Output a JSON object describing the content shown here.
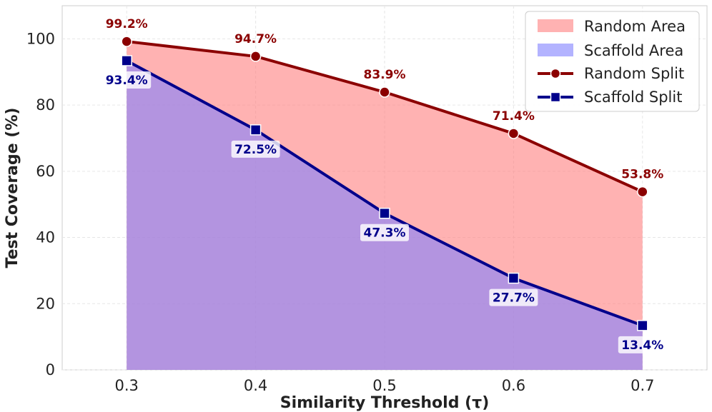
{
  "chart_data": {
    "type": "line",
    "title": "",
    "xlabel": "Similarity Threshold (τ)",
    "ylabel": "Test Coverage (%)",
    "x": [
      0.3,
      0.4,
      0.5,
      0.6,
      0.7
    ],
    "x_tick_labels": [
      "0.3",
      "0.4",
      "0.5",
      "0.6",
      "0.7"
    ],
    "xlim": [
      0.25,
      0.75
    ],
    "ylim": [
      0,
      110
    ],
    "y_ticks": [
      0,
      20,
      40,
      60,
      80,
      100
    ],
    "y_tick_labels": [
      "0",
      "20",
      "40",
      "60",
      "80",
      "100"
    ],
    "grid": true,
    "legend_position": "top-right",
    "series": [
      {
        "name": "Random Split",
        "values": [
          99.2,
          94.7,
          83.9,
          71.4,
          53.8
        ],
        "labels": [
          "99.2%",
          "94.7%",
          "83.9%",
          "71.4%",
          "53.8%"
        ],
        "marker": "circle",
        "color": "#8b0000",
        "area_name": "Random Area",
        "area_color": "#ff7f7f"
      },
      {
        "name": "Scaffold Split",
        "values": [
          93.4,
          72.5,
          47.3,
          27.7,
          13.4
        ],
        "labels": [
          "93.4%",
          "72.5%",
          "47.3%",
          "27.7%",
          "13.4%"
        ],
        "marker": "square",
        "color": "#00008b",
        "area_name": "Scaffold Area",
        "area_color": "#8080ff"
      }
    ],
    "legend": [
      "Random Area",
      "Scaffold Area",
      "Random Split",
      "Scaffold Split"
    ]
  }
}
